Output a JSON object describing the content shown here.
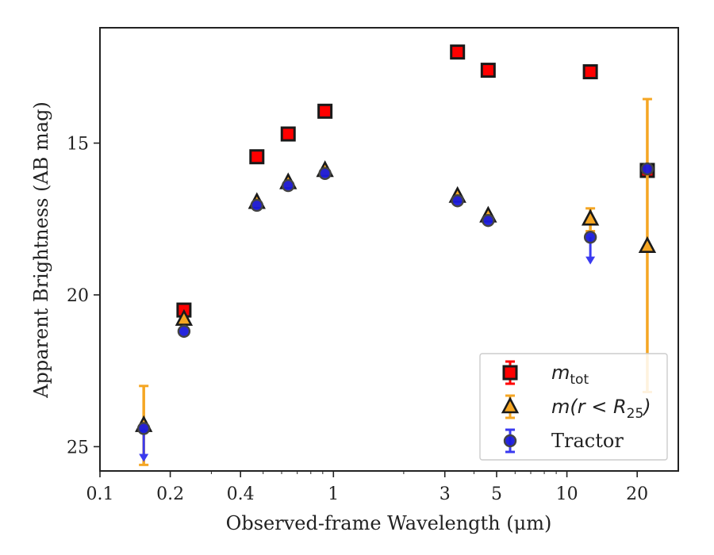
{
  "chart_data": {
    "type": "scatter",
    "xlabel": "Observed-frame Wavelength (μm)",
    "ylabel": "Apparent Brightness (AB mag)",
    "xscale": "log",
    "xlim": [
      0.1,
      30
    ],
    "ylim": [
      25.8,
      11.2
    ],
    "y_inverted": true,
    "x_ticks": [
      0.1,
      0.2,
      0.4,
      1,
      3,
      5,
      10,
      20
    ],
    "x_tick_labels": [
      "0.1",
      "0.2",
      "0.4",
      "1",
      "3",
      "5",
      "10",
      "20"
    ],
    "y_ticks": [
      15,
      20,
      25
    ],
    "y_tick_labels": [
      "15",
      "20",
      "25"
    ],
    "grid": false,
    "legend_position": "lower-right",
    "series": [
      {
        "name": "m_tot",
        "legend_main": "m",
        "legend_sub": "tot",
        "marker": "square",
        "color": "#ff0000",
        "error_color": "#ff0000",
        "points": [
          {
            "x": 0.229,
            "y": 20.5
          },
          {
            "x": 0.47,
            "y": 15.45
          },
          {
            "x": 0.64,
            "y": 14.7
          },
          {
            "x": 0.92,
            "y": 13.95
          },
          {
            "x": 3.4,
            "y": 12.0
          },
          {
            "x": 4.6,
            "y": 12.6
          },
          {
            "x": 12.6,
            "y": 12.65
          },
          {
            "x": 22.1,
            "y": 15.9
          }
        ]
      },
      {
        "name": "m(r<R_25)",
        "legend_main": "m(r < R",
        "legend_sub": "25",
        "legend_tail": ")",
        "marker": "triangle",
        "color": "#f5a623",
        "error_color": "#f5a623",
        "points": [
          {
            "x": 0.154,
            "y": 24.3,
            "yerr_low": 23.0,
            "yerr_high": 25.6
          },
          {
            "x": 0.229,
            "y": 20.8
          },
          {
            "x": 0.47,
            "y": 16.95
          },
          {
            "x": 0.64,
            "y": 16.3
          },
          {
            "x": 0.92,
            "y": 15.9
          },
          {
            "x": 3.4,
            "y": 16.75
          },
          {
            "x": 4.6,
            "y": 17.4
          },
          {
            "x": 12.6,
            "y": 17.5,
            "yerr_low": 17.15,
            "yerr_high": 17.9
          },
          {
            "x": 22.1,
            "y": 18.4,
            "yerr_low": 13.55,
            "yerr_high": 23.2
          }
        ]
      },
      {
        "name": "Tractor",
        "legend_main": "Tractor",
        "marker": "circle",
        "color": "#1a1adc",
        "error_color": "#3a3af0",
        "points": [
          {
            "x": 0.154,
            "y": 24.4,
            "upper_limit": true,
            "arrow_to": 25.5
          },
          {
            "x": 0.229,
            "y": 21.2
          },
          {
            "x": 0.47,
            "y": 17.05
          },
          {
            "x": 0.64,
            "y": 16.4
          },
          {
            "x": 0.92,
            "y": 16.0
          },
          {
            "x": 3.4,
            "y": 16.9
          },
          {
            "x": 4.6,
            "y": 17.55
          },
          {
            "x": 12.6,
            "y": 18.1,
            "upper_limit": true,
            "arrow_to": 19.0
          },
          {
            "x": 22.1,
            "y": 15.85
          }
        ]
      }
    ]
  }
}
